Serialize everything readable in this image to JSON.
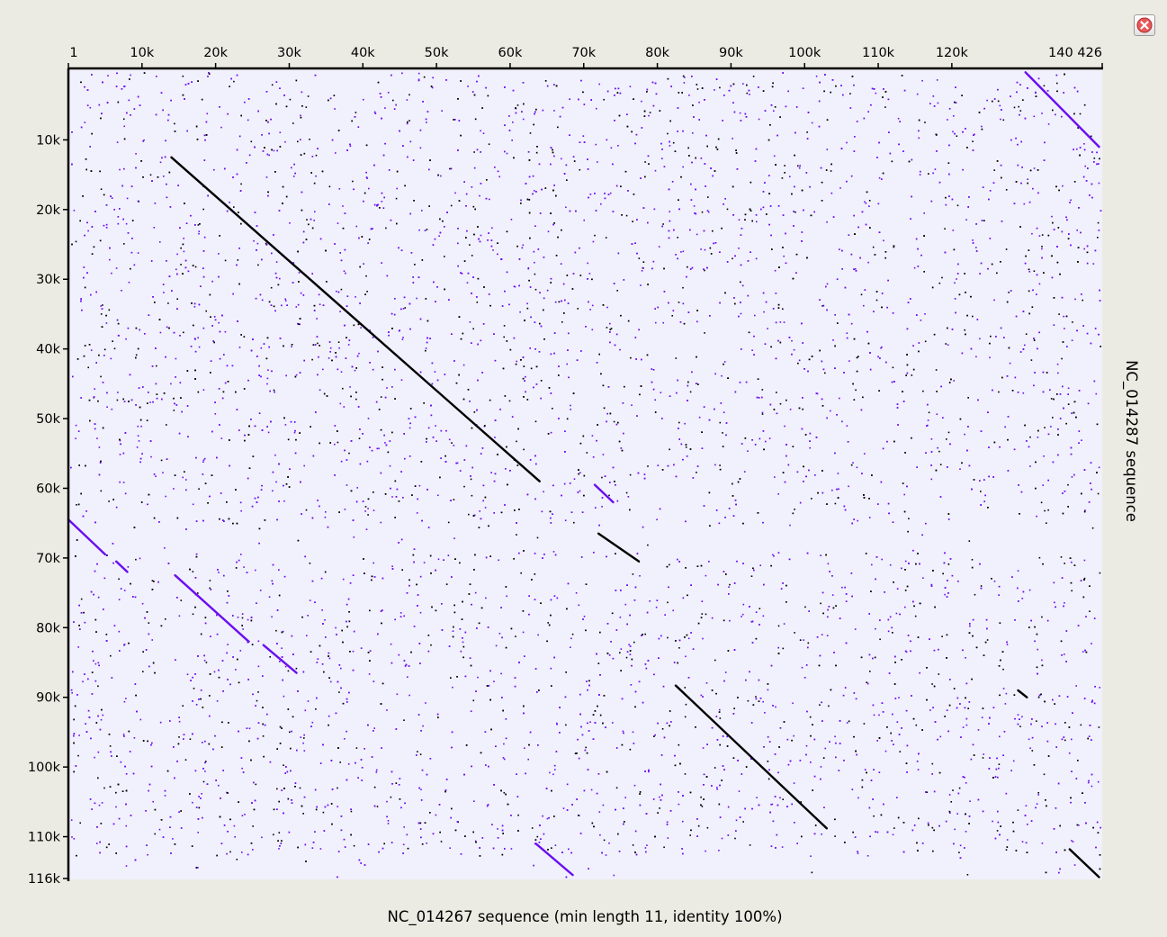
{
  "chart_data": {
    "type": "scatter",
    "kind": "dot plot",
    "x_axis": {
      "label": "NC_014267 sequence (min length 11, identity 100%)",
      "range": [
        1,
        140426
      ],
      "tick_labels": [
        "1",
        "10k",
        "20k",
        "30k",
        "40k",
        "50k",
        "60k",
        "70k",
        "80k",
        "90k",
        "100k",
        "110k",
        "120k",
        "140 426"
      ],
      "tick_values": [
        1,
        10000,
        20000,
        30000,
        40000,
        50000,
        60000,
        70000,
        80000,
        90000,
        100000,
        110000,
        120000,
        140426
      ]
    },
    "y_axis": {
      "label": "NC_014287 sequence",
      "range": [
        1,
        116000
      ],
      "tick_labels": [
        "10k",
        "20k",
        "30k",
        "40k",
        "50k",
        "60k",
        "70k",
        "80k",
        "90k",
        "100k",
        "110k",
        "116k"
      ],
      "tick_values": [
        10000,
        20000,
        30000,
        40000,
        50000,
        60000,
        70000,
        80000,
        90000,
        100000,
        110000,
        116000
      ]
    },
    "colors": {
      "direct": "#000000",
      "inverted": "#6a0ef0",
      "background": "#f1f0fd"
    },
    "series": [
      {
        "name": "direct",
        "segments": [
          {
            "x1": 14000,
            "y1": 12500,
            "x2": 64000,
            "y2": 59000
          },
          {
            "x1": 72000,
            "y1": 66500,
            "x2": 77500,
            "y2": 70500
          },
          {
            "x1": 82500,
            "y1": 88300,
            "x2": 103000,
            "y2": 108800
          },
          {
            "x1": 129000,
            "y1": 89000,
            "x2": 130200,
            "y2": 90000
          },
          {
            "x1": 136000,
            "y1": 111800,
            "x2": 140000,
            "y2": 115800
          }
        ]
      },
      {
        "name": "inverted",
        "segments": [
          {
            "x1": 0,
            "y1": 64500,
            "x2": 5000,
            "y2": 69500
          },
          {
            "x1": 6500,
            "y1": 70500,
            "x2": 8000,
            "y2": 72000
          },
          {
            "x1": 14500,
            "y1": 72500,
            "x2": 24500,
            "y2": 82000
          },
          {
            "x1": 26500,
            "y1": 82500,
            "x2": 31000,
            "y2": 86500
          },
          {
            "x1": 71500,
            "y1": 59500,
            "x2": 74000,
            "y2": 62000
          },
          {
            "x1": 63500,
            "y1": 111000,
            "x2": 68500,
            "y2": 115500
          },
          {
            "x1": 130000,
            "y1": 300,
            "x2": 140000,
            "y2": 11000
          }
        ]
      }
    ]
  },
  "ui": {
    "close_icon": "close-icon"
  }
}
